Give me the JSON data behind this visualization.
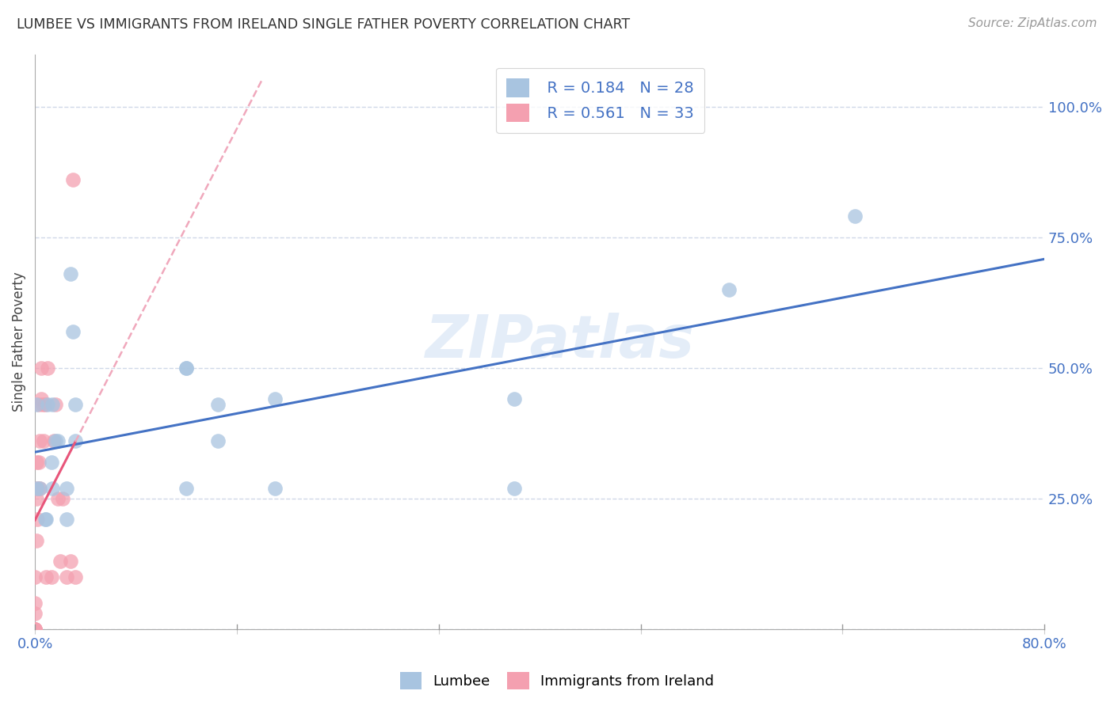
{
  "title": "LUMBEE VS IMMIGRANTS FROM IRELAND SINGLE FATHER POVERTY CORRELATION CHART",
  "source": "Source: ZipAtlas.com",
  "ylabel": "Single Father Poverty",
  "legend_lumbee_r": "R = 0.184",
  "legend_lumbee_n": "N = 28",
  "legend_ireland_r": "R = 0.561",
  "legend_ireland_n": "N = 33",
  "lumbee_color": "#a8c4e0",
  "ireland_color": "#f4a0b0",
  "lumbee_line_color": "#4472C4",
  "ireland_line_color": "#E8557A",
  "ireland_dash_color": "#F0A8BC",
  "watermark": "ZIPatlas",
  "lumbee_x": [
    0.001,
    0.001,
    0.004,
    0.008,
    0.009,
    0.01,
    0.013,
    0.014,
    0.014,
    0.016,
    0.018,
    0.025,
    0.025,
    0.028,
    0.03,
    0.032,
    0.032,
    0.12,
    0.12,
    0.12,
    0.145,
    0.145,
    0.19,
    0.19,
    0.38,
    0.38,
    0.55,
    0.65
  ],
  "lumbee_y": [
    0.43,
    0.27,
    0.27,
    0.21,
    0.21,
    0.43,
    0.32,
    0.27,
    0.43,
    0.36,
    0.36,
    0.21,
    0.27,
    0.68,
    0.57,
    0.36,
    0.43,
    0.27,
    0.5,
    0.5,
    0.36,
    0.43,
    0.44,
    0.27,
    0.44,
    0.27,
    0.65,
    0.79
  ],
  "ireland_x": [
    0.0,
    0.0,
    0.0,
    0.0,
    0.0,
    0.0,
    0.0,
    0.001,
    0.001,
    0.001,
    0.002,
    0.002,
    0.003,
    0.003,
    0.004,
    0.004,
    0.005,
    0.005,
    0.006,
    0.007,
    0.008,
    0.009,
    0.01,
    0.013,
    0.015,
    0.016,
    0.018,
    0.02,
    0.022,
    0.025,
    0.028,
    0.03,
    0.032
  ],
  "ireland_y": [
    0.0,
    0.0,
    0.0,
    0.0,
    0.03,
    0.05,
    0.1,
    0.17,
    0.25,
    0.32,
    0.21,
    0.27,
    0.32,
    0.43,
    0.27,
    0.36,
    0.44,
    0.5,
    0.43,
    0.36,
    0.43,
    0.1,
    0.5,
    0.1,
    0.36,
    0.43,
    0.25,
    0.13,
    0.25,
    0.1,
    0.13,
    0.86,
    0.1
  ],
  "xlim": [
    0.0,
    0.8
  ],
  "ylim": [
    0.0,
    1.1
  ],
  "yticks": [
    0.0,
    0.25,
    0.5,
    0.75,
    1.0
  ],
  "ytick_labels": [
    "",
    "25.0%",
    "50.0%",
    "75.0%",
    "100.0%"
  ],
  "xtick_positions": [
    0.0,
    0.16,
    0.32,
    0.48,
    0.64,
    0.8
  ],
  "xtick_labels": [
    "0.0%",
    "",
    "",
    "",
    "",
    "80.0%"
  ],
  "grid_color": "#d0d8e8",
  "bg_color": "#ffffff",
  "scatter_size": 180,
  "scatter_alpha": 0.75
}
